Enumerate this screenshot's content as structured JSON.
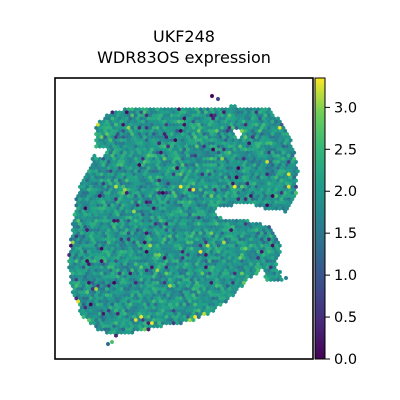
{
  "chart_data": {
    "type": "scatter",
    "title": "UKF248",
    "subtitle": "WDR83OS expression",
    "xlabel": "",
    "ylabel": "",
    "grid": false,
    "legend": "none",
    "colorbar": {
      "colormap": "viridis",
      "range": [
        0.0,
        3.35
      ],
      "ticks": [
        0.0,
        0.5,
        1.0,
        1.5,
        2.0,
        2.5,
        3.0
      ],
      "tick_labels": [
        "0.0",
        "0.5",
        "1.0",
        "1.5",
        "2.0",
        "2.5",
        "3.0"
      ]
    },
    "series": [
      {
        "marker": "hexagon",
        "value_distribution": {
          "typical": 2.0,
          "spread": 0.3,
          "min": 0.0,
          "max": 3.35
        }
      }
    ]
  }
}
